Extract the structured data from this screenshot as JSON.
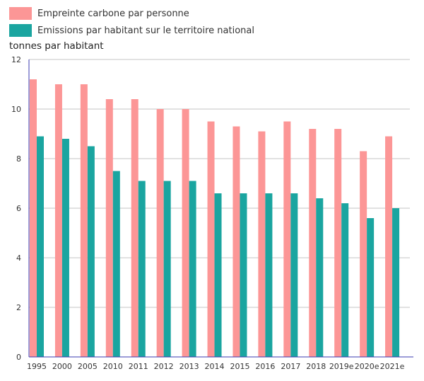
{
  "chart_data": {
    "type": "bar",
    "ylabel": "tonnes par habitant",
    "ylim": [
      0,
      12
    ],
    "yticks": [
      "0",
      "2",
      "4",
      "6",
      "8",
      "10",
      "12"
    ],
    "categories": [
      "1995",
      "2000",
      "2005",
      "2010",
      "2011",
      "2012",
      "2013",
      "2014",
      "2015",
      "2016",
      "2017",
      "2018",
      "2019e",
      "2020e",
      "2021e"
    ],
    "series": [
      {
        "name": "Empreinte carbone par personne",
        "color": "#fc9696",
        "values": [
          11.2,
          11.0,
          11.0,
          10.4,
          10.4,
          10.0,
          10.0,
          9.5,
          9.3,
          9.1,
          9.5,
          9.2,
          9.2,
          8.3,
          8.9
        ]
      },
      {
        "name": "Emissions par habitant sur le territoire national",
        "color": "#1aa5a0",
        "values": [
          8.9,
          8.8,
          8.5,
          7.5,
          7.1,
          7.1,
          7.1,
          6.6,
          6.6,
          6.6,
          6.6,
          6.4,
          6.2,
          5.6,
          6.0
        ]
      }
    ],
    "grid": true,
    "legend_position": "top-left"
  }
}
